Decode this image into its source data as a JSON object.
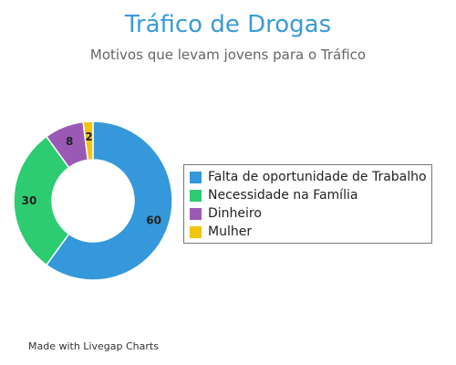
{
  "chart_data": {
    "type": "pie",
    "title": "Tráfico de Drogas",
    "subtitle": "Motivos que levam jovens para o Tráfico",
    "categories": [
      "Falta de oportunidade de Trabalho",
      "Necessidade na Família",
      "Dinheiro",
      "Mulher"
    ],
    "values": [
      60,
      30,
      8,
      2
    ],
    "colors": [
      "#3498db",
      "#2ecc71",
      "#9b59b6",
      "#f1c40f"
    ],
    "donut": true,
    "legend": "right"
  },
  "footer": "Made with Livegap Charts"
}
